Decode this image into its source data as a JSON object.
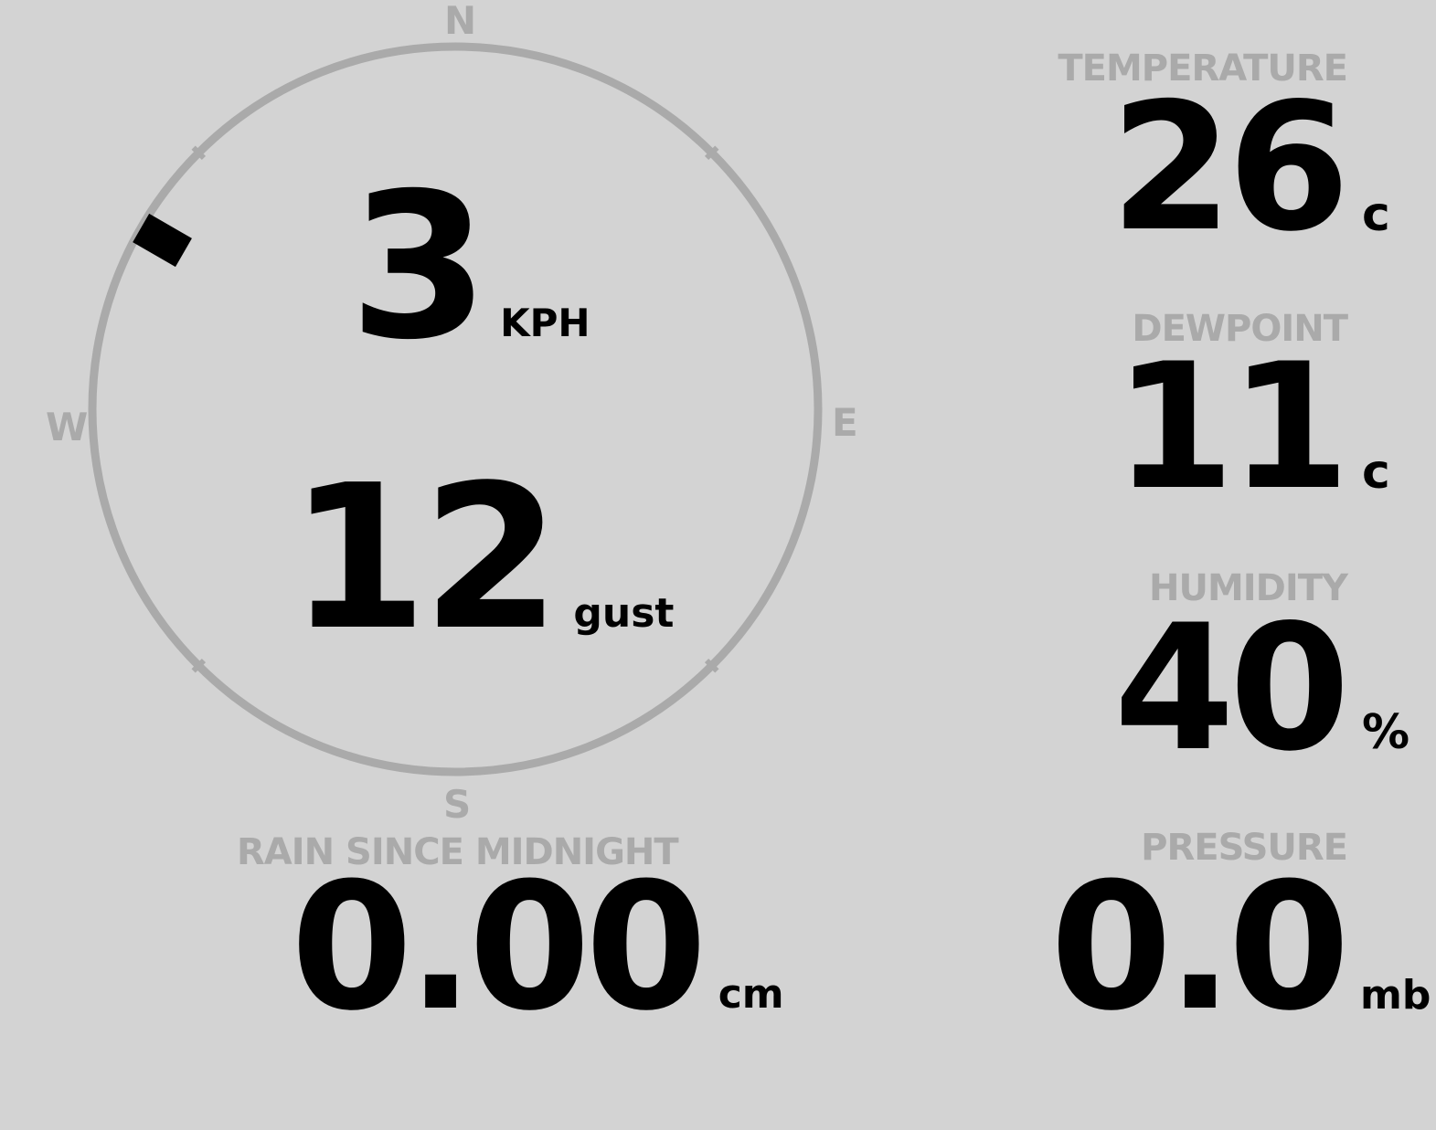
{
  "wind": {
    "speed": "3",
    "speed_unit": "KPH",
    "gust": "12",
    "gust_unit": "gust",
    "direction_degrees": 300,
    "compass": {
      "n": "N",
      "e": "E",
      "s": "S",
      "w": "W"
    }
  },
  "rain": {
    "label": "RAIN SINCE MIDNIGHT",
    "value": "0.00",
    "unit": "cm"
  },
  "temperature": {
    "label": "TEMPERATURE",
    "value": "26",
    "unit": "c"
  },
  "dewpoint": {
    "label": "DEWPOINT",
    "value": "11",
    "unit": "c"
  },
  "humidity": {
    "label": "HUMIDITY",
    "value": "40",
    "unit": "%"
  },
  "pressure": {
    "label": "PRESSURE",
    "value": "0.0",
    "unit": "mb"
  },
  "colors": {
    "background": "#d3d3d3",
    "muted": "#aaaaaa",
    "value": "#000000"
  }
}
